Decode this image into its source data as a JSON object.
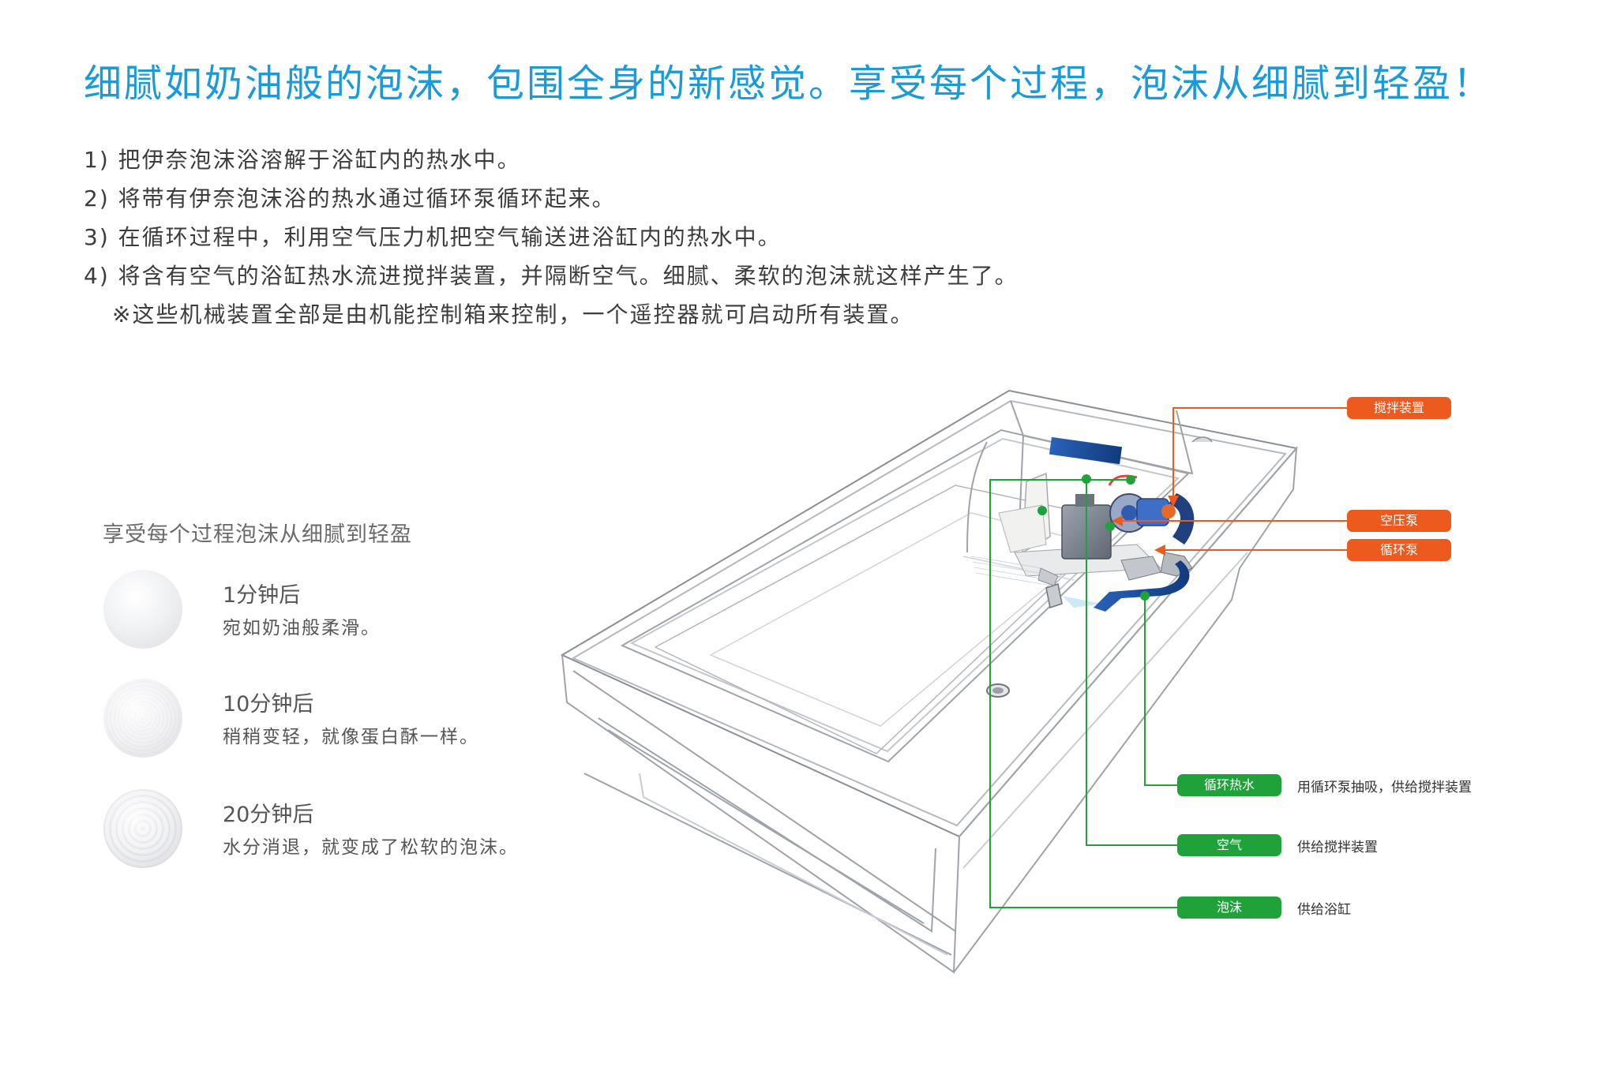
{
  "headline": "细腻如奶油般的泡沫，包围全身的新感觉。享受每个过程，泡沫从细腻到轻盈！",
  "steps": [
    "1) 把伊奈泡沫浴溶解于浴缸内的热水中。",
    "2) 将带有伊奈泡沫浴的热水通过循环泵循环起来。",
    "3) 在循环过程中，利用空气压力机把空气输送进浴缸内的热水中。",
    "4) 将含有空气的浴缸热水流进搅拌装置，并隔断空气。细腻、柔软的泡沫就这样产生了。"
  ],
  "note": "※这些机械装置全部是由机能控制箱来控制，一个遥控器就可启动所有装置。",
  "stages": {
    "title": "享受每个过程泡沫从细腻到轻盈",
    "items": [
      {
        "time": "1分钟后",
        "desc": "宛如奶油般柔滑。"
      },
      {
        "time": "10分钟后",
        "desc": "稍稍变轻，就像蛋白酥一样。"
      },
      {
        "time": "20分钟后",
        "desc": "水分消退，就变成了松软的泡沫。"
      }
    ]
  },
  "diagram": {
    "component_labels": [
      "搅拌装置",
      "空压泵",
      "循环泵"
    ],
    "flows": [
      {
        "label": "循环热水",
        "desc": "用循环泵抽吸，供给搅拌装置"
      },
      {
        "label": "空气",
        "desc": "供给搅拌装置"
      },
      {
        "label": "泡沫",
        "desc": "供给浴缸"
      }
    ]
  },
  "colors": {
    "headline": "#1a9bd7",
    "component_tag": "#ec5a1e",
    "flow_tag": "#1fa23a",
    "pipe_blue": "#1a4fa0"
  }
}
